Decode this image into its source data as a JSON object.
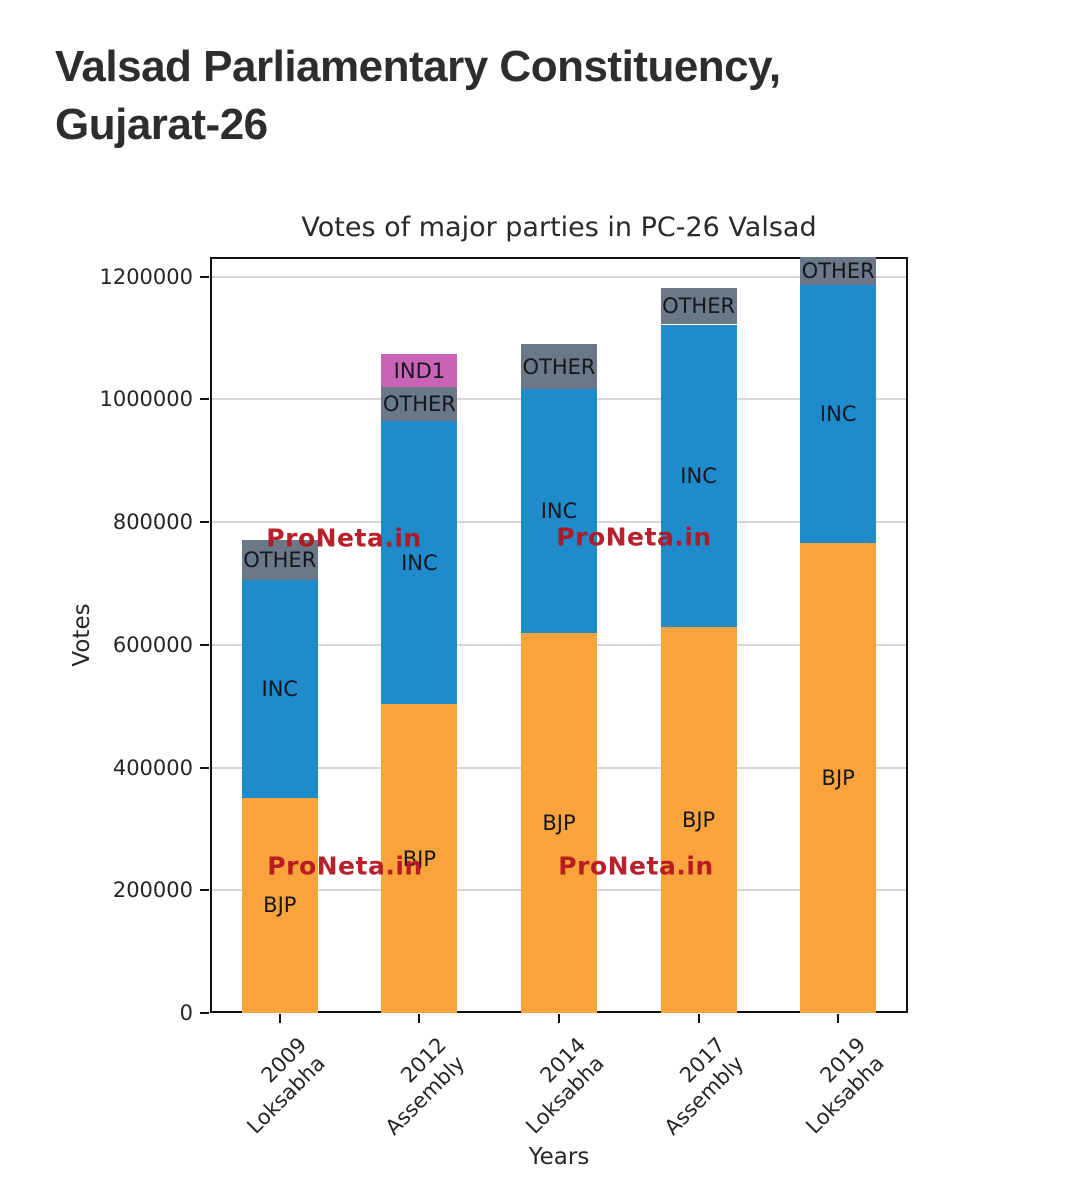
{
  "page": {
    "title_line1": "Valsad Parliamentary Constituency,",
    "title_line2": "Gujarat-26"
  },
  "watermark": {
    "text": "ProNeta.in",
    "color": "#B51520"
  },
  "chart_data": {
    "type": "bar",
    "stacked": true,
    "title": "Votes of major parties in PC-26 Valsad",
    "xlabel": "Years",
    "ylabel": "Votes",
    "categories": [
      "2009 Loksabha",
      "2012 Assembly",
      "2014 Loksabha",
      "2017 Assembly",
      "2019 Loksabha"
    ],
    "category_lines": [
      [
        "2009",
        "Loksabha"
      ],
      [
        "2012",
        "Assembly"
      ],
      [
        "2014",
        "Loksabha"
      ],
      [
        "2017",
        "Assembly"
      ],
      [
        "2019",
        "Loksabha"
      ]
    ],
    "series": [
      {
        "name": "BJP",
        "color": "#F9A33C",
        "values": [
          351000,
          503000,
          620000,
          629000,
          766000
        ]
      },
      {
        "name": "INC",
        "color": "#1F8BCB",
        "values": [
          355000,
          462000,
          397000,
          493000,
          420000
        ]
      },
      {
        "name": "OTHER",
        "color": "#6A7888",
        "values": [
          65000,
          55000,
          73000,
          59000,
          46000
        ]
      },
      {
        "name": "IND1",
        "color": "#C964B6",
        "values": [
          0,
          54000,
          0,
          0,
          0
        ]
      }
    ],
    "totals": [
      771000,
      1074000,
      1090000,
      1181000,
      1232000
    ],
    "ylim": [
      0,
      1232000
    ],
    "yticks": [
      0,
      200000,
      400000,
      600000,
      800000,
      1000000,
      1200000
    ],
    "ytick_labels": [
      "0",
      "200000",
      "400000",
      "600000",
      "800000",
      "1000000",
      "1200000"
    ],
    "grid": true,
    "legend": false,
    "segment_labels": "inside-centered",
    "watermark_text": "ProNeta.in"
  }
}
